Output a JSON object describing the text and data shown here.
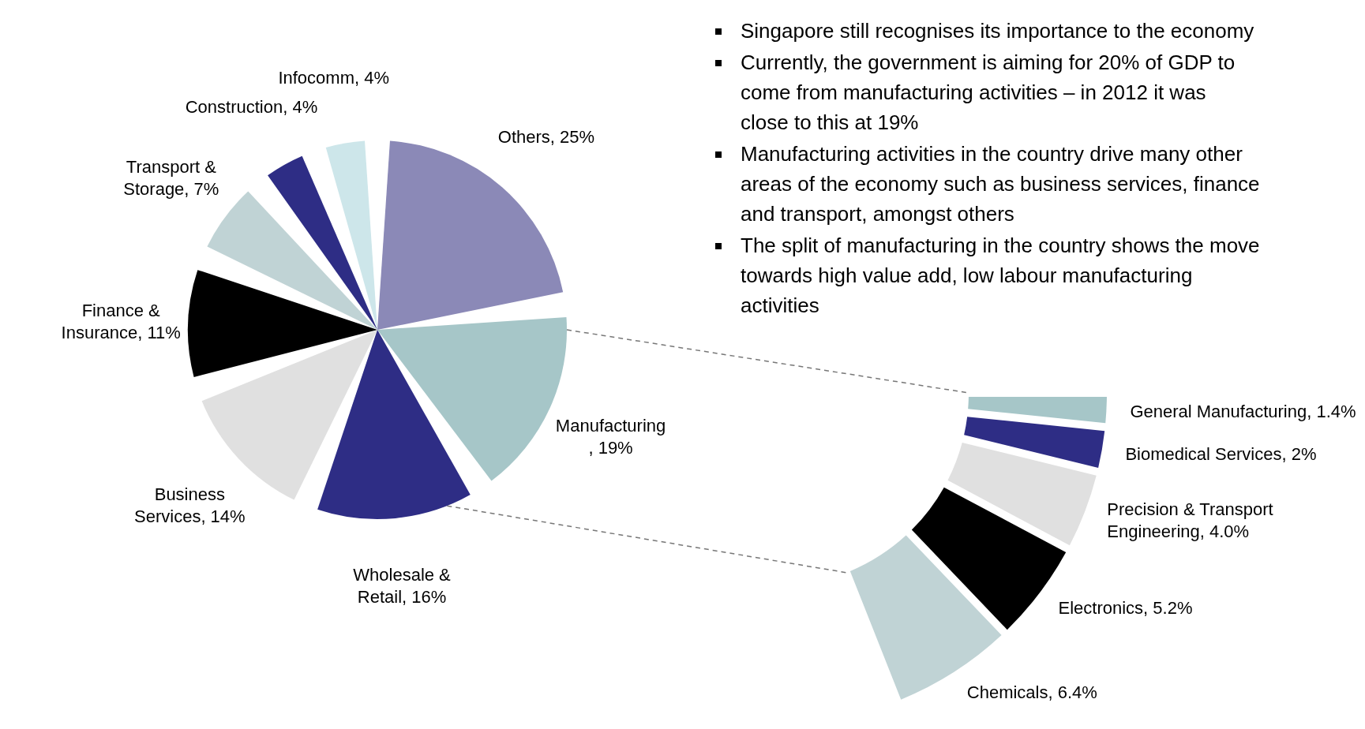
{
  "chart_data": [
    {
      "type": "pie",
      "categories": [
        "Others",
        "Manufacturing",
        "Wholesale & Retail",
        "Business Services",
        "Finance & Insurance",
        "Transport & Storage",
        "Construction",
        "Infocomm"
      ],
      "values": [
        25,
        19,
        16,
        14,
        11,
        7,
        4,
        4
      ],
      "colors": [
        "#8b89b7",
        "#a6c6c8",
        "#2e2d85",
        "#e0e0e0",
        "#000000",
        "#c0d3d5",
        "#2e2d85",
        "#cde6ea"
      ],
      "value_labels": [
        ", 25%",
        ", 19%",
        ", 16%",
        ", 14%",
        ", 11%",
        ", 7%",
        ", 4%",
        ", 4%"
      ],
      "annotations": [
        "Singapore still recognises its importance to the economy",
        "Currently, the government is aiming for 20% of GDP to come from manufacturing activities – in 2012 it was close to this at 19%",
        "Manufacturing activities in the country drive many other areas of the economy such as business services, finance and transport, amongst others",
        "The split of manufacturing in the country shows the move towards high value add, low labour manufacturing activities"
      ]
    },
    {
      "type": "donut",
      "categories": [
        "General Manufacturing",
        "Biomedical Services",
        "Precision & Transport Engineering",
        "Electronics",
        "Chemicals"
      ],
      "values": [
        1.4,
        2,
        4.0,
        5.2,
        6.4
      ],
      "colors": [
        "#a6c6c8",
        "#2e2d85",
        "#e0e0e0",
        "#000000",
        "#c0d3d5"
      ],
      "value_labels": [
        ", 1.4%",
        ", 2%",
        ", 4.0%",
        ", 5.2%",
        ", 6.4%"
      ]
    }
  ]
}
